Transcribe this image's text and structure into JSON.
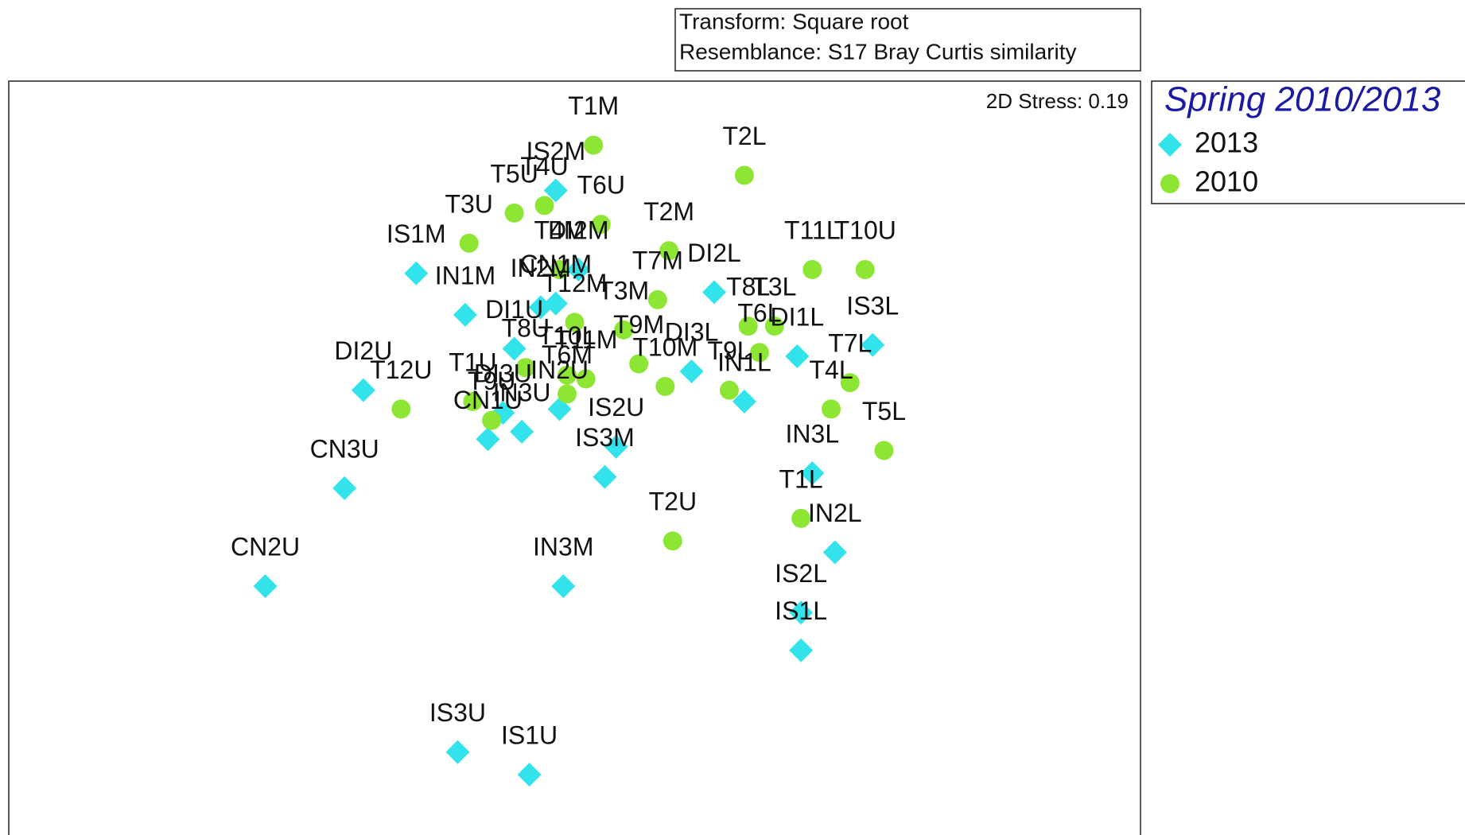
{
  "chart_data": {
    "type": "scatter",
    "annotations": [
      "Transform: Square root",
      "Resemblance: S17 Bray Curtis similarity"
    ],
    "stress": "2D Stress: 0.19",
    "legend_title": "Spring 2010/2013",
    "legend": "outside-right",
    "xlim": [
      -1.5,
      1.5
    ],
    "ylim": [
      -1,
      1
    ],
    "series": [
      {
        "name": "2013",
        "color": "#33e3ec",
        "marker": "diamond",
        "labels": [
          "IS1M",
          "IN1M",
          "DI2U",
          "CN3U",
          "CN2U",
          "IN3M",
          "IS3U",
          "IS1U",
          "IS3M",
          "IS2U",
          "IS2M",
          "IS3L",
          "IN3L",
          "IN2L",
          "IS2L",
          "IS1L",
          "IN1L",
          "DI1L",
          "DI2L",
          "DI1U",
          "IN2M",
          "CN1M",
          "DI2M",
          "DI3L",
          "CN1U",
          "IN3U",
          "IN2U",
          "DI3U"
        ],
        "x": [
          -0.42,
          -0.29,
          -0.56,
          -0.61,
          -0.82,
          -0.03,
          -0.31,
          -0.12,
          0.08,
          0.11,
          -0.05,
          0.79,
          0.63,
          0.69,
          0.6,
          0.6,
          0.45,
          0.59,
          0.37,
          -0.16,
          -0.09,
          -0.05,
          0.01,
          0.31,
          -0.23,
          -0.14,
          -0.04,
          -0.19
        ],
        "y": [
          0.49,
          0.38,
          0.18,
          -0.08,
          -0.34,
          -0.34,
          -0.78,
          -0.84,
          -0.05,
          0.03,
          0.71,
          0.3,
          -0.04,
          -0.25,
          -0.41,
          -0.51,
          0.15,
          0.27,
          0.44,
          0.29,
          0.4,
          0.41,
          0.5,
          0.23,
          0.05,
          0.07,
          0.13,
          0.12
        ]
      },
      {
        "name": "2010",
        "color": "#8ee634",
        "marker": "circle",
        "labels": [
          "T1M",
          "T2L",
          "T6U",
          "T5U",
          "T4U",
          "T3U",
          "T2M",
          "T11L",
          "T10U",
          "T7L",
          "T4L",
          "T5L",
          "T1L",
          "T2U",
          "T12U",
          "T9L",
          "T8L",
          "T3L",
          "T6L",
          "T7M",
          "T4M",
          "T3M",
          "T9M",
          "T10M",
          "T11M",
          "T10L",
          "T12M",
          "T6M",
          "T8U",
          "T9U",
          "T1U"
        ],
        "x": [
          0.05,
          0.45,
          0.07,
          -0.16,
          -0.08,
          -0.28,
          0.25,
          0.63,
          0.77,
          0.73,
          0.68,
          0.82,
          0.6,
          0.26,
          -0.46,
          0.41,
          0.46,
          0.53,
          0.49,
          0.22,
          -0.04,
          0.13,
          0.17,
          0.24,
          0.03,
          -0.02,
          0.0,
          -0.02,
          -0.13,
          -0.22,
          -0.27
        ],
        "y": [
          0.83,
          0.75,
          0.62,
          0.65,
          0.67,
          0.57,
          0.55,
          0.5,
          0.5,
          0.2,
          0.13,
          0.02,
          -0.16,
          -0.22,
          0.13,
          0.18,
          0.35,
          0.35,
          0.28,
          0.42,
          0.5,
          0.34,
          0.25,
          0.19,
          0.21,
          0.22,
          0.36,
          0.17,
          0.24,
          0.1,
          0.15
        ]
      }
    ]
  }
}
